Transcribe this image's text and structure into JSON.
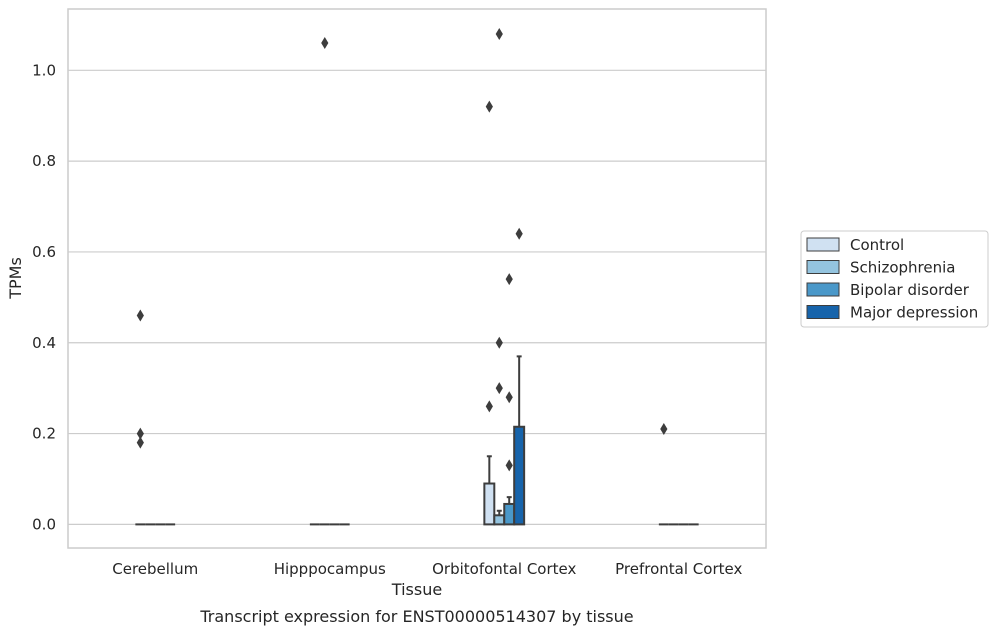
{
  "chart_data": {
    "type": "bar",
    "caption": "Transcript expression for ENST00000514307 by tissue",
    "xlabel": "Tissue",
    "ylabel": "TPMs",
    "ylim": [
      -0.052,
      1.135
    ],
    "yticks": [
      0.0,
      0.2,
      0.4,
      0.6,
      0.8,
      1.0
    ],
    "ytick_labels": [
      "0.0",
      "0.2",
      "0.4",
      "0.6",
      "0.8",
      "1.0"
    ],
    "grid": "horizontal",
    "legend_position": "right",
    "categories": [
      "Cerebellum",
      "Hipppocampus",
      "Orbitofontal Cortex",
      "Prefrontal Cortex"
    ],
    "series": [
      {
        "name": "Control",
        "color": "#d0e1f2",
        "values": [
          0.0,
          0.0,
          0.09,
          0.0
        ],
        "error_upper": [
          0.0,
          0.0,
          0.15,
          0.0
        ],
        "outliers": [
          [
            0.46,
            0.2,
            0.18
          ],
          [],
          [
            0.92,
            0.26
          ],
          [
            0.21
          ]
        ]
      },
      {
        "name": "Schizophrenia",
        "color": "#94c4df",
        "values": [
          0.0,
          0.0,
          0.02,
          0.0
        ],
        "error_upper": [
          0.0,
          0.0,
          0.03,
          0.0
        ],
        "outliers": [
          [],
          [
            1.06
          ],
          [
            1.08,
            0.4,
            0.3
          ],
          []
        ]
      },
      {
        "name": "Bipolar disorder",
        "color": "#4a98c9",
        "values": [
          0.0,
          0.0,
          0.045,
          0.0
        ],
        "error_upper": [
          0.0,
          0.0,
          0.06,
          0.0
        ],
        "outliers": [
          [],
          [],
          [
            0.54,
            0.28,
            0.13
          ],
          []
        ]
      },
      {
        "name": "Major depression",
        "color": "#1764ab",
        "values": [
          0.0,
          0.0,
          0.215,
          0.0
        ],
        "error_upper": [
          0.0,
          0.0,
          0.37,
          0.0
        ],
        "outliers": [
          [],
          [],
          [
            0.64
          ],
          []
        ]
      }
    ]
  }
}
